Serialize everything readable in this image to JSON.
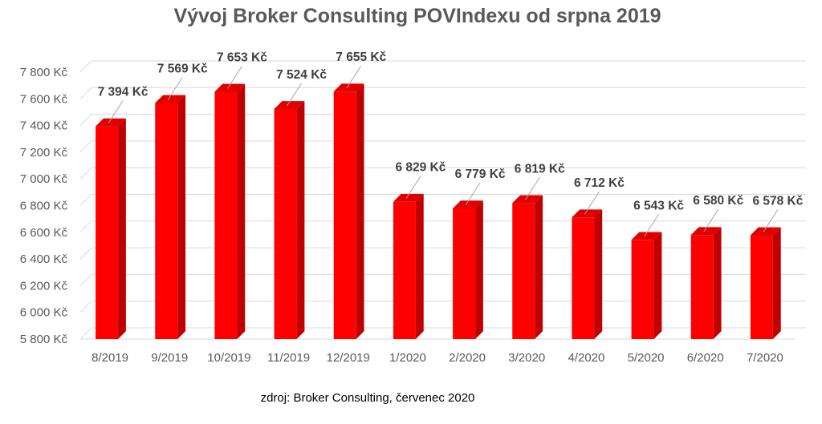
{
  "chart_data": {
    "type": "bar",
    "title": "Vývoj Broker Consulting POVIndexu od srpna 2019",
    "categories": [
      "8/2019",
      "9/2019",
      "10/2019",
      "11/2019",
      "12/2019",
      "1/2020",
      "2/2020",
      "3/2020",
      "4/2020",
      "5/2020",
      "6/2020",
      "7/2020"
    ],
    "values": [
      7394,
      7569,
      7653,
      7524,
      7655,
      6829,
      6779,
      6819,
      6712,
      6543,
      6580,
      6578
    ],
    "data_labels": [
      "7 394 Kč",
      "7 569 Kč",
      "7 653 Kč",
      "7 524 Kč",
      "7 655 Kč",
      "6 829 Kč",
      "6 779 Kč",
      "6 819 Kč",
      "6 712 Kč",
      "6 543 Kč",
      "6 580 Kč",
      "6 578 Kč"
    ],
    "yticks": [
      5800,
      6000,
      6200,
      6400,
      6600,
      6800,
      7000,
      7200,
      7400,
      7600,
      7800
    ],
    "ytick_labels": [
      "5 800 Kč",
      "6 000 Kč",
      "6 200 Kč",
      "6 400 Kč",
      "6 600 Kč",
      "6 800 Kč",
      "7 000 Kč",
      "7 200 Kč",
      "7 400 Kč",
      "7 600 Kč",
      "7 800 Kč"
    ],
    "ylim": [
      5800,
      7800
    ],
    "xlabel": "",
    "ylabel": "",
    "grid": true,
    "legend": "none",
    "bar_color": "#ff0000",
    "bar_side_color": "#c00000",
    "bar_top_color": "#e00000"
  },
  "source_note": "zdroj: Broker Consulting, červenec 2020"
}
